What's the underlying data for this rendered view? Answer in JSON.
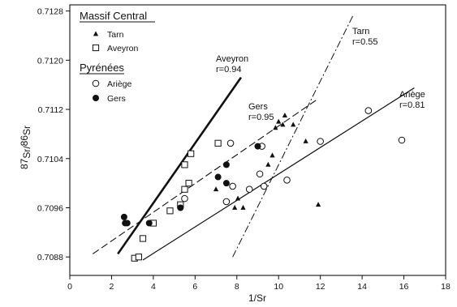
{
  "chart_data": {
    "type": "scatter",
    "xlabel": "1/Sr",
    "ylabel": "87Sr/86Sr",
    "xlim": [
      0,
      18
    ],
    "ylim": [
      0.7085,
      0.7129
    ],
    "x_ticks": [
      "0",
      "2",
      "4",
      "6",
      "8",
      "10",
      "12",
      "14",
      "16",
      "18"
    ],
    "y_ticks": [
      "0.7088",
      "0.7096",
      "0.7104",
      "0.7112",
      "0.7120",
      "0.7128"
    ],
    "legend": {
      "groups": [
        {
          "title": "Massif Central",
          "items": [
            "Tarn",
            "Aveyron"
          ]
        },
        {
          "title": "Pyrénées",
          "items": [
            "Ariège",
            "Gers"
          ]
        }
      ],
      "position": "top-left"
    },
    "series": [
      {
        "name": "Tarn",
        "marker": "filled-triangle",
        "points": [
          [
            7.0,
            0.7099
          ],
          [
            7.9,
            0.7096
          ],
          [
            8.05,
            0.70975
          ],
          [
            8.3,
            0.7096
          ],
          [
            9.5,
            0.7103
          ],
          [
            9.7,
            0.71045
          ],
          [
            9.85,
            0.7109
          ],
          [
            10.0,
            0.711
          ],
          [
            10.2,
            0.71095
          ],
          [
            10.3,
            0.7111
          ],
          [
            10.7,
            0.71095
          ],
          [
            11.3,
            0.71068
          ],
          [
            11.9,
            0.70965
          ]
        ],
        "fit": {
          "label": "Tarn",
          "r_label": "r=0.55",
          "from": [
            7.8,
            0.7088
          ],
          "to": [
            13.6,
            0.71275
          ],
          "style": "dash-dot"
        }
      },
      {
        "name": "Aveyron",
        "marker": "open-square",
        "points": [
          [
            3.1,
            0.70878
          ],
          [
            3.3,
            0.7088
          ],
          [
            3.5,
            0.7091
          ],
          [
            4.0,
            0.70935
          ],
          [
            4.8,
            0.70955
          ],
          [
            5.3,
            0.70965
          ],
          [
            5.5,
            0.7099
          ],
          [
            5.5,
            0.7103
          ],
          [
            5.7,
            0.71
          ],
          [
            5.8,
            0.71048
          ],
          [
            7.1,
            0.71065
          ]
        ],
        "fit": {
          "label": "Aveyron",
          "r_label": "r=0.94",
          "from": [
            2.3,
            0.70885
          ],
          "to": [
            8.2,
            0.71172
          ],
          "style": "solid-bold"
        }
      },
      {
        "name": "Ariège",
        "marker": "open-circle",
        "points": [
          [
            5.5,
            0.70975
          ],
          [
            7.7,
            0.71065
          ],
          [
            7.8,
            0.70995
          ],
          [
            9.2,
            0.7106
          ],
          [
            8.6,
            0.7099
          ],
          [
            9.1,
            0.71015
          ],
          [
            9.3,
            0.70995
          ],
          [
            10.4,
            0.71005
          ],
          [
            12.0,
            0.71068
          ],
          [
            14.3,
            0.71118
          ],
          [
            15.9,
            0.7107
          ],
          [
            7.5,
            0.7097
          ]
        ],
        "fit": {
          "label": "Ariège",
          "r_label": "r=0.81",
          "from": [
            3.5,
            0.70875
          ],
          "to": [
            16.5,
            0.71155
          ],
          "style": "solid"
        }
      },
      {
        "name": "Gers",
        "marker": "filled-circle",
        "points": [
          [
            2.6,
            0.70945
          ],
          [
            2.65,
            0.70935
          ],
          [
            2.75,
            0.70935
          ],
          [
            3.8,
            0.70935
          ],
          [
            5.3,
            0.7096
          ],
          [
            7.1,
            0.7101
          ],
          [
            7.5,
            0.71
          ],
          [
            7.5,
            0.7103
          ],
          [
            9.0,
            0.7106
          ]
        ],
        "fit": {
          "label": "Gers",
          "r_label": "r=0.95",
          "from": [
            1.1,
            0.70885
          ],
          "to": [
            11.8,
            0.71135
          ],
          "style": "dashed"
        }
      }
    ]
  }
}
